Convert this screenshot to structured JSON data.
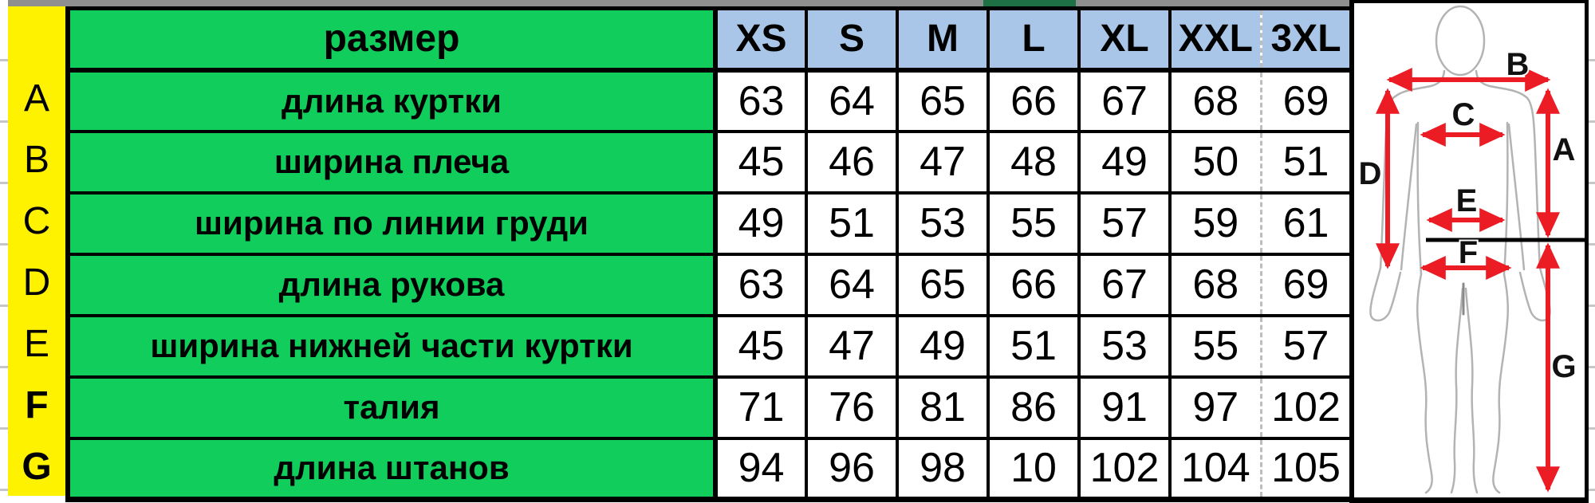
{
  "chart_data": {
    "type": "table",
    "header_label": "размер",
    "size_columns": [
      "XS",
      "S",
      "M",
      "L",
      "XL",
      "XXL",
      "3XL"
    ],
    "rows": [
      {
        "letter": "A",
        "letter_bold": false,
        "label": "длина куртки",
        "values": [
          63,
          64,
          65,
          66,
          67,
          68,
          69
        ]
      },
      {
        "letter": "B",
        "letter_bold": false,
        "label": "ширина плеча",
        "values": [
          45,
          46,
          47,
          48,
          49,
          50,
          51
        ]
      },
      {
        "letter": "C",
        "letter_bold": false,
        "label": "ширина по линии груди",
        "values": [
          49,
          51,
          53,
          55,
          57,
          59,
          61
        ]
      },
      {
        "letter": "D",
        "letter_bold": false,
        "label": "длина рукова",
        "values": [
          63,
          64,
          65,
          66,
          67,
          68,
          69
        ]
      },
      {
        "letter": "E",
        "letter_bold": false,
        "label": "ширина нижней части куртки",
        "values": [
          45,
          47,
          49,
          51,
          53,
          55,
          57
        ]
      },
      {
        "letter": "F",
        "letter_bold": true,
        "label": "талия",
        "values": [
          71,
          76,
          81,
          86,
          91,
          97,
          102
        ]
      },
      {
        "letter": "G",
        "letter_bold": true,
        "label": "длина штанов",
        "values": [
          94,
          96,
          98,
          10,
          102,
          104,
          105
        ]
      }
    ]
  },
  "figure": {
    "measure_labels": {
      "a": "A",
      "b": "B",
      "c": "C",
      "d": "D",
      "e": "E",
      "f": "F",
      "g": "G"
    }
  },
  "colors": {
    "letter_column_bg": "#FFF200",
    "label_bg": "#11CE5C",
    "size_header_bg": "#A9C6E8",
    "value_bg": "#FFFFFF",
    "border_black": "#000000",
    "arrow_red": "#EC1C24",
    "figure_outline_gray": "#B3B3B3",
    "top_strip_gray": "#8F8F8F",
    "top_strip_green": "#1E7145",
    "pagebreak_dash_gray": "#BDBDBD"
  }
}
